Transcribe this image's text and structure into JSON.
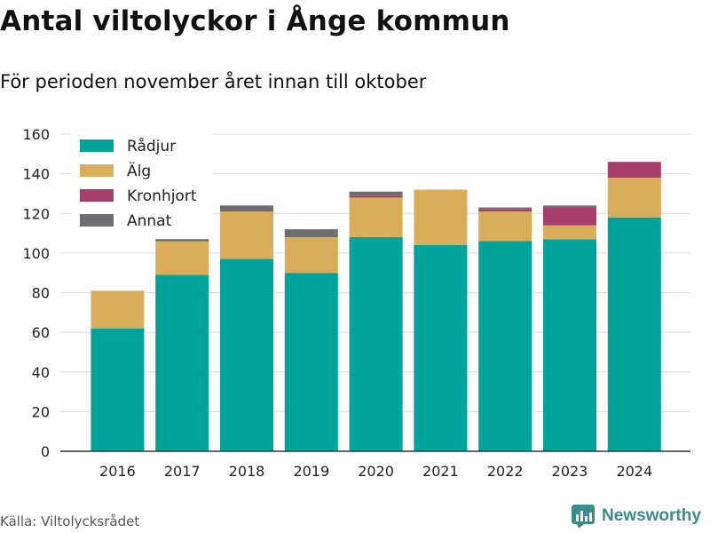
{
  "header": {
    "title": "Antal viltolyckor i Ånge kommun",
    "subtitle": "För perioden november året innan till oktober"
  },
  "footer": {
    "source": "Källa: Viltolycksrådet",
    "brand": "Newsworthy"
  },
  "colors": {
    "Rådjur": "#00a39a",
    "Älg": "#d9ad5a",
    "Kronhjort": "#a63d6a",
    "Annat": "#6d6d72"
  },
  "chart_data": {
    "type": "bar",
    "stacked": true,
    "categories": [
      "2016",
      "2017",
      "2018",
      "2019",
      "2020",
      "2021",
      "2022",
      "2023",
      "2024"
    ],
    "series": [
      {
        "name": "Rådjur",
        "values": [
          62,
          89,
          97,
          90,
          108,
          104,
          106,
          107,
          118
        ]
      },
      {
        "name": "Älg",
        "values": [
          19,
          17,
          24,
          18,
          20,
          28,
          15,
          7,
          20
        ]
      },
      {
        "name": "Kronhjort",
        "values": [
          0,
          0,
          0,
          0,
          1,
          0,
          1,
          9,
          8
        ]
      },
      {
        "name": "Annat",
        "values": [
          0,
          1,
          3,
          4,
          2,
          0,
          1,
          1,
          0
        ]
      }
    ],
    "ylim": [
      0,
      160
    ],
    "yticks": [
      0,
      20,
      40,
      60,
      80,
      100,
      120,
      140,
      160
    ],
    "grid": true,
    "legend_position": "top-left"
  }
}
